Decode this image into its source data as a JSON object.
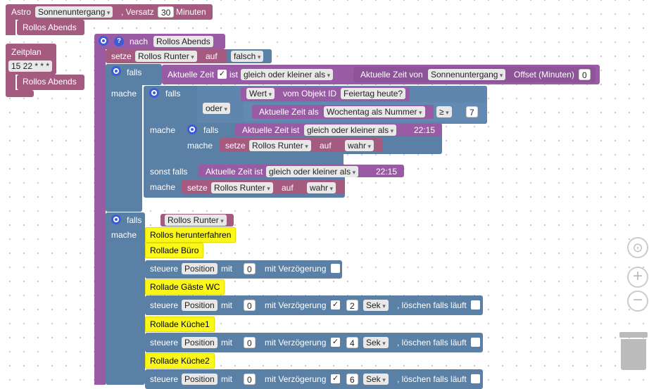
{
  "trigger": {
    "astro_label": "Astro",
    "astro_event": "Sonnenuntergang",
    "versatz_label": ", Versatz",
    "versatz_value": "30",
    "minuten_label": "Minuten",
    "rollos_abends_1": "Rollos Abends",
    "zeitplan_label": "Zeitplan",
    "zeitplan_value": "15 22 * * *",
    "rollos_abends_2": "Rollos Abends"
  },
  "main": {
    "nach_label": "nach",
    "nach_value": "Rollos Abends",
    "setze1_label": "setze",
    "setze1_var": "Rollos Runter",
    "auf_label": "auf",
    "falsch_value": "falsch",
    "falls_label": "falls",
    "aktuelle_zeit": "Aktuelle Zeit",
    "ist_label": "ist",
    "gleich_oder_kleiner": "gleich oder kleiner als",
    "aktuelle_zeit_von": "Aktuelle Zeit von",
    "sonnenuntergang": "Sonnenuntergang",
    "offset_label": "Offset (Minuten)",
    "offset_value": "0",
    "mache_label": "mache",
    "wert_label": "Wert",
    "vom_objekt_id": "vom Objekt ID",
    "feiertag": "Feiertag heute?",
    "oder_label": "oder",
    "aktuelle_zeit_als": "Aktuelle Zeit als",
    "wochentag": "Wochentag als Nummer",
    "gte_op": "≥",
    "seven": "7",
    "aktuelle_zeit_ist": "Aktuelle Zeit ist",
    "time_2215": "22:15",
    "setze": "setze",
    "rollos_runter": "Rollos Runter",
    "wahr": "wahr",
    "sonst_falls": "sonst falls"
  },
  "second": {
    "falls_label": "falls",
    "cond_var": "Rollos Runter",
    "mache_label": "mache",
    "comment_herunter": "Rollos herunterfahren",
    "comment_buero": "Rollade Büro",
    "comment_gaeste": "Rollade Gäste WC",
    "comment_kueche1": "Rollade Küche1",
    "comment_kueche2": "Rollade Küche2",
    "steuere": "steuere",
    "position": "Position",
    "mit": "mit",
    "zero": "0",
    "mit_verzoegerung": "mit Verzögerung",
    "sek": "Sek",
    "loeschen": ", löschen falls läuft",
    "delay_2": "2",
    "delay_4": "4",
    "delay_6": "6"
  },
  "colors": {
    "event": "#a55b80",
    "procedure": "#9a5ba5",
    "logic": "#5b80a5",
    "comment": "#fbf719"
  },
  "icons": [
    "gear-icon",
    "help-icon",
    "target-icon",
    "zoom-in-icon",
    "zoom-out-icon",
    "trash-icon"
  ]
}
